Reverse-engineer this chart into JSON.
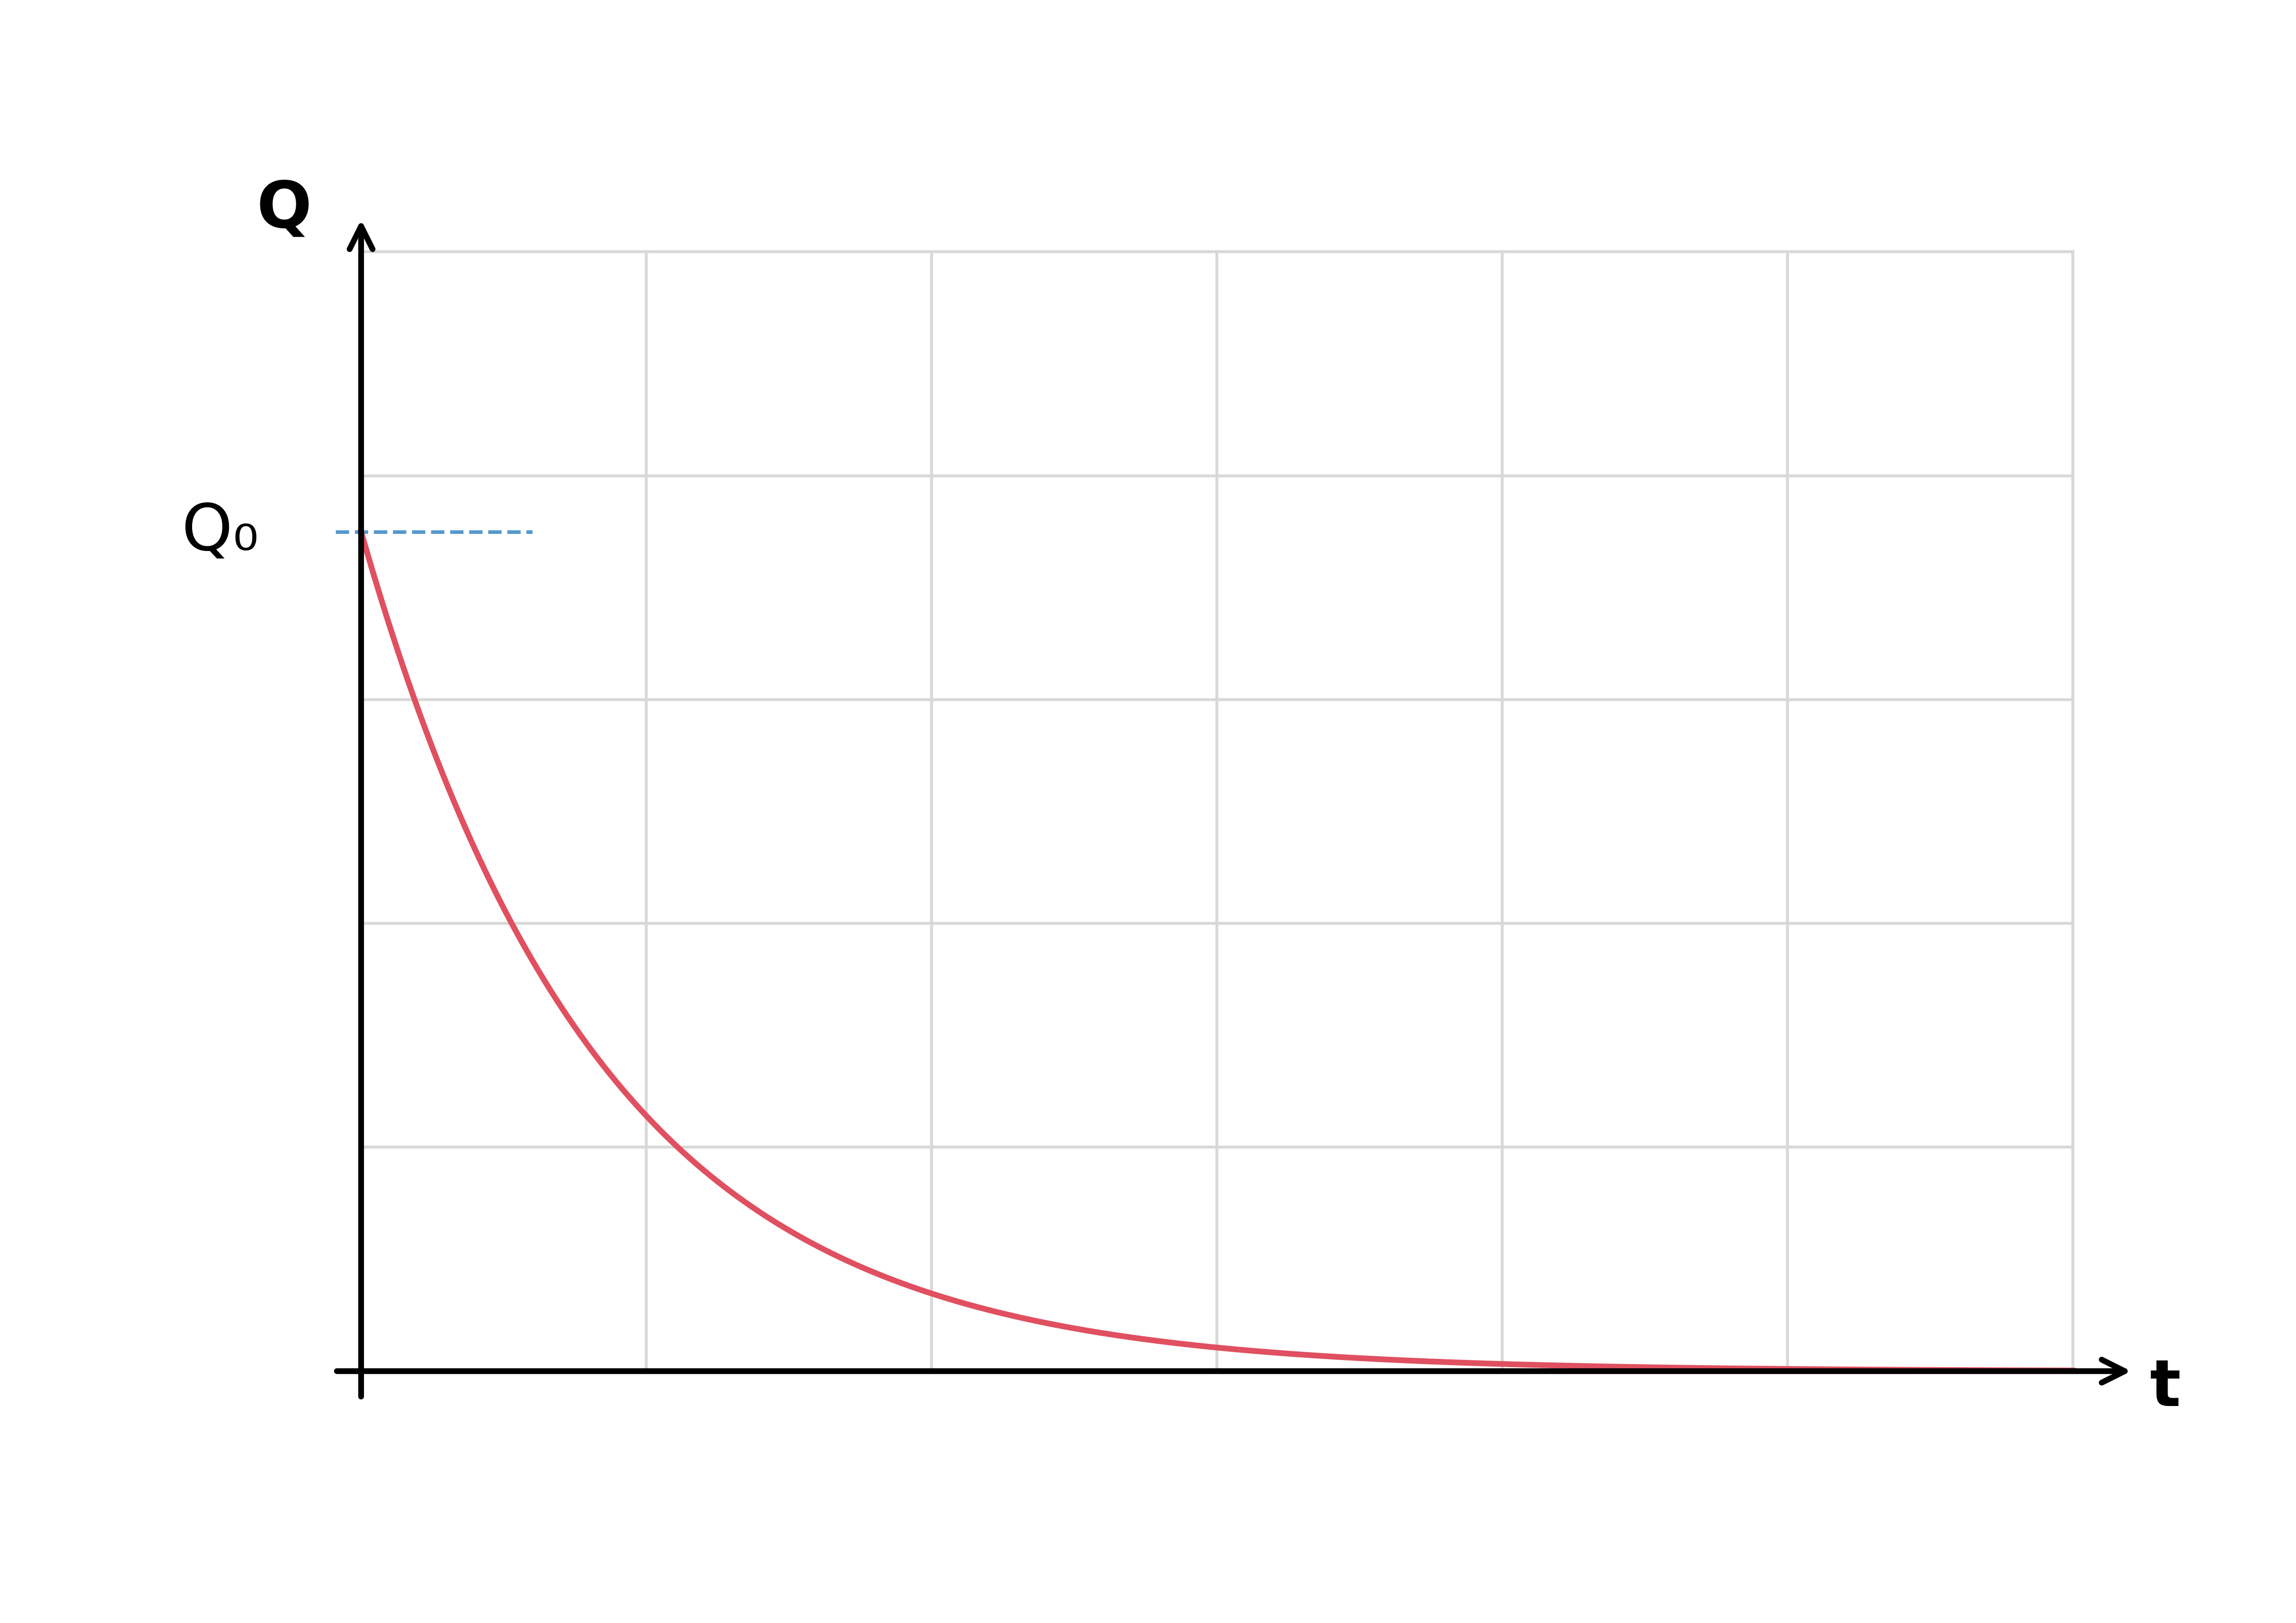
{
  "background_color": "#ffffff",
  "grid_color": "#d8d8d8",
  "curve_color": "#e05060",
  "dashed_line_color": "#5599cc",
  "axis_color": "#000000",
  "curve_linewidth": 8,
  "dashed_linewidth": 5,
  "axis_linewidth": 8,
  "Q_label": "Q",
  "Q0_label": "Q₀",
  "t_label": "t",
  "Q_label_fontsize": 90,
  "Q0_label_fontsize": 90,
  "t_label_fontsize": 90,
  "xlim": [
    0,
    10
  ],
  "ylim": [
    0,
    10
  ],
  "Q0_value": 7.5,
  "tau": 1.4,
  "grid_nx": 6,
  "grid_ny": 5,
  "dashed_line_xend": 1.0,
  "arrow_mutation_scale": 80
}
